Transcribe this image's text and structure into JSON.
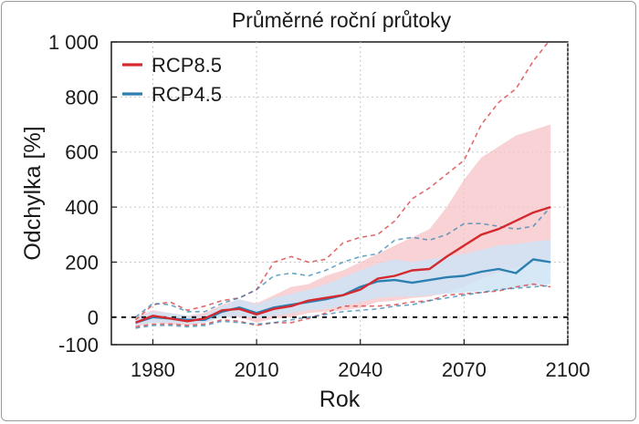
{
  "chart_data": {
    "type": "line",
    "title": "Průměrné roční průtoky",
    "xlabel": "Rok",
    "ylabel": "Odchylka [%]",
    "xlim": [
      1968,
      2100
    ],
    "ylim": [
      -100,
      1000
    ],
    "xticks": [
      1980,
      2010,
      2040,
      2070,
      2100
    ],
    "xtick_labels": [
      "1980",
      "2010",
      "2040",
      "2070",
      "2100"
    ],
    "yticks": [
      -100,
      0,
      200,
      400,
      600,
      800,
      1000
    ],
    "ytick_labels": [
      "-100",
      "0",
      "200",
      "400",
      "600",
      "800",
      "1 000"
    ],
    "grid": true,
    "zero_line": true,
    "legend_position": "top-left",
    "series": [
      {
        "name": "RCP8.5",
        "color": "#d42a2f",
        "band_color": "#f6c3c5",
        "x": [
          1975,
          1980,
          1985,
          1990,
          1995,
          2000,
          2005,
          2010,
          2015,
          2020,
          2025,
          2030,
          2035,
          2040,
          2045,
          2050,
          2055,
          2060,
          2065,
          2070,
          2075,
          2080,
          2085,
          2090,
          2095
        ],
        "mean": [
          -20,
          5,
          -5,
          -15,
          -5,
          25,
          30,
          10,
          30,
          40,
          60,
          70,
          80,
          100,
          140,
          150,
          170,
          175,
          220,
          260,
          300,
          320,
          350,
          380,
          400
        ],
        "lower": [
          -35,
          -20,
          -25,
          -30,
          -20,
          0,
          0,
          -20,
          -5,
          0,
          15,
          20,
          25,
          35,
          55,
          60,
          70,
          75,
          90,
          110,
          140,
          160,
          180,
          200,
          210
        ],
        "upper": [
          0,
          25,
          15,
          5,
          15,
          45,
          65,
          50,
          80,
          110,
          120,
          150,
          170,
          200,
          230,
          260,
          290,
          320,
          400,
          500,
          580,
          620,
          660,
          680,
          700
        ],
        "envelope_upper": [
          -10,
          45,
          55,
          25,
          40,
          60,
          70,
          100,
          200,
          220,
          200,
          210,
          270,
          290,
          300,
          350,
          430,
          470,
          520,
          570,
          700,
          780,
          830,
          930,
          1010
        ],
        "envelope_lower": [
          -35,
          -25,
          -25,
          -30,
          -25,
          -10,
          -15,
          -30,
          -20,
          -20,
          -5,
          15,
          40,
          40,
          40,
          45,
          55,
          60,
          80,
          85,
          90,
          95,
          110,
          120,
          110
        ]
      },
      {
        "name": "RCP4.5",
        "color": "#2b7fb1",
        "band_color": "#cfe4f4",
        "x": [
          1975,
          1980,
          1985,
          1990,
          1995,
          2000,
          2005,
          2010,
          2015,
          2020,
          2025,
          2030,
          2035,
          2040,
          2045,
          2050,
          2055,
          2060,
          2065,
          2070,
          2075,
          2080,
          2085,
          2090,
          2095
        ],
        "mean": [
          -20,
          0,
          -5,
          -10,
          -10,
          20,
          35,
          15,
          35,
          45,
          55,
          65,
          80,
          110,
          130,
          135,
          125,
          135,
          145,
          150,
          165,
          175,
          160,
          210,
          200
        ],
        "lower": [
          -30,
          -20,
          -20,
          -25,
          -20,
          0,
          5,
          -5,
          5,
          15,
          25,
          30,
          40,
          55,
          70,
          75,
          75,
          80,
          85,
          90,
          95,
          100,
          105,
          115,
          120
        ],
        "upper": [
          -5,
          20,
          15,
          5,
          5,
          40,
          65,
          45,
          70,
          85,
          100,
          120,
          145,
          170,
          195,
          210,
          200,
          210,
          220,
          230,
          245,
          260,
          265,
          275,
          280
        ],
        "envelope_upper": [
          0,
          50,
          45,
          20,
          20,
          50,
          70,
          100,
          150,
          160,
          150,
          170,
          200,
          220,
          230,
          280,
          290,
          280,
          300,
          340,
          340,
          330,
          320,
          330,
          400
        ],
        "envelope_lower": [
          -40,
          -30,
          -30,
          -35,
          -30,
          -15,
          -20,
          -25,
          -20,
          -10,
          0,
          10,
          20,
          25,
          30,
          40,
          45,
          60,
          70,
          80,
          90,
          100,
          105,
          110,
          115
        ]
      }
    ]
  }
}
